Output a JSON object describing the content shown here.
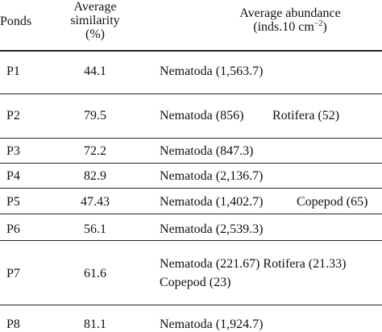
{
  "header": {
    "ponds": "Ponds",
    "similarity_line1": "Average",
    "similarity_line2": "similarity",
    "similarity_line3": "(%)",
    "abundance_line1": "Average abundance",
    "abundance_line2_prefix": "(inds.10 cm",
    "abundance_line2_sup": "−2",
    "abundance_line2_suffix": ")"
  },
  "rows": [
    {
      "pond": "P1",
      "similarity": "44.1",
      "taxa": [
        "Nematoda (1,563.7)"
      ]
    },
    {
      "pond": "P2",
      "similarity": "79.5",
      "taxa": [
        "Nematoda (856)",
        "Rotifera (52)"
      ]
    },
    {
      "pond": "P3",
      "similarity": "72.2",
      "taxa": [
        "Nematoda (847.3)"
      ]
    },
    {
      "pond": "P4",
      "similarity": "82.9",
      "taxa": [
        "Nematoda (2,136.7)"
      ]
    },
    {
      "pond": "P5",
      "similarity": "47.43",
      "taxa": [
        "Nematoda (1,402.7)",
        "Copepod (65)"
      ]
    },
    {
      "pond": "P6",
      "similarity": "56.1",
      "taxa": [
        "Nematoda (2,539.3)"
      ]
    },
    {
      "pond": "P7",
      "similarity": "61.6",
      "taxa": [
        "Nematoda (221.67) Rotifera (21.33)",
        "Copepod (23)"
      ]
    },
    {
      "pond": "P8",
      "similarity": "81.1",
      "taxa": [
        "Nematoda (1,924.7)"
      ]
    }
  ]
}
